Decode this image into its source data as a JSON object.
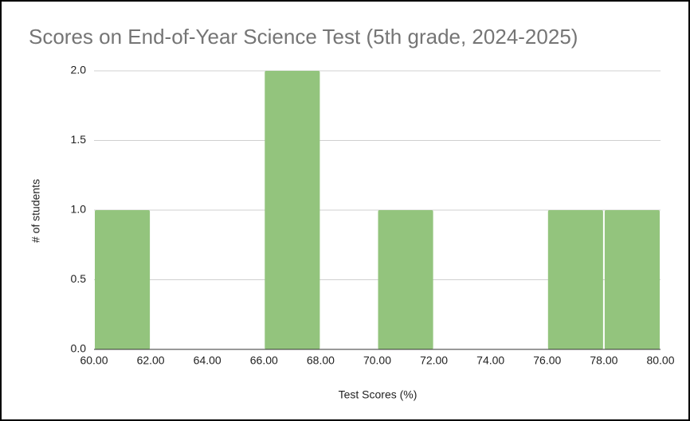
{
  "chart_data": {
    "type": "histogram",
    "title": "Scores on End-of-Year Science Test (5th grade, 2024-2025)",
    "xlabel": "Test Scores (%)",
    "ylabel": "# of students",
    "bins": [
      60,
      62,
      64,
      66,
      68,
      70,
      72,
      74,
      76,
      78,
      80
    ],
    "values": [
      1,
      0,
      0,
      2,
      0,
      1,
      0,
      0,
      1,
      1
    ],
    "color": "#93c47d",
    "xlim": [
      60,
      80
    ],
    "xticks": [
      {
        "value": 60,
        "label": "60.00"
      },
      {
        "value": 62,
        "label": "62.00"
      },
      {
        "value": 64,
        "label": "64.00"
      },
      {
        "value": 66,
        "label": "66.00"
      },
      {
        "value": 68,
        "label": "68.00"
      },
      {
        "value": 70,
        "label": "70.00"
      },
      {
        "value": 72,
        "label": "72.00"
      },
      {
        "value": 74,
        "label": "74.00"
      },
      {
        "value": 76,
        "label": "76.00"
      },
      {
        "value": 78,
        "label": "78.00"
      },
      {
        "value": 80,
        "label": "80.00"
      }
    ],
    "ylim": [
      0,
      2
    ],
    "yticks": [
      {
        "value": 0,
        "label": "0.0"
      },
      0.5,
      {
        "value": 1,
        "label": "1.0"
      },
      1.5,
      {
        "value": 2,
        "label": "2.0"
      }
    ],
    "grid": true
  }
}
